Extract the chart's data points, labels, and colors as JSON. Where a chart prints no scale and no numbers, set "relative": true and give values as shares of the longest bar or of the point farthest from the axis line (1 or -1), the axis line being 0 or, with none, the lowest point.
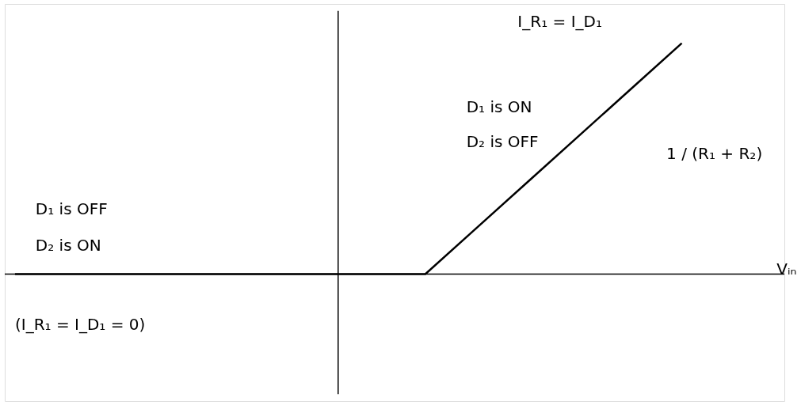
{
  "chart_data": {
    "type": "line",
    "relative": true,
    "xlabel": "Vᵢₙ",
    "ylabel": "I_R₁ = I_D₁",
    "categories": [
      null,
      null,
      null,
      null,
      null,
      null,
      null,
      null,
      null,
      null,
      null,
      null,
      null,
      null
    ],
    "values": [
      0,
      0,
      0,
      0,
      0,
      0,
      0,
      0,
      0,
      0.2,
      0.4,
      0.6,
      0.8,
      1
    ],
    "color": "#000000",
    "tick_labels": false,
    "grid": false,
    "marker": "none",
    "line_style": "solid",
    "annotations": [
      "D₁ is ON",
      "D₂ is OFF",
      "1 / (R₁ + R₂)",
      "D₁ is OFF",
      "D₂ is ON",
      "(I_R₁ = I_D₁ = 0)"
    ]
  }
}
